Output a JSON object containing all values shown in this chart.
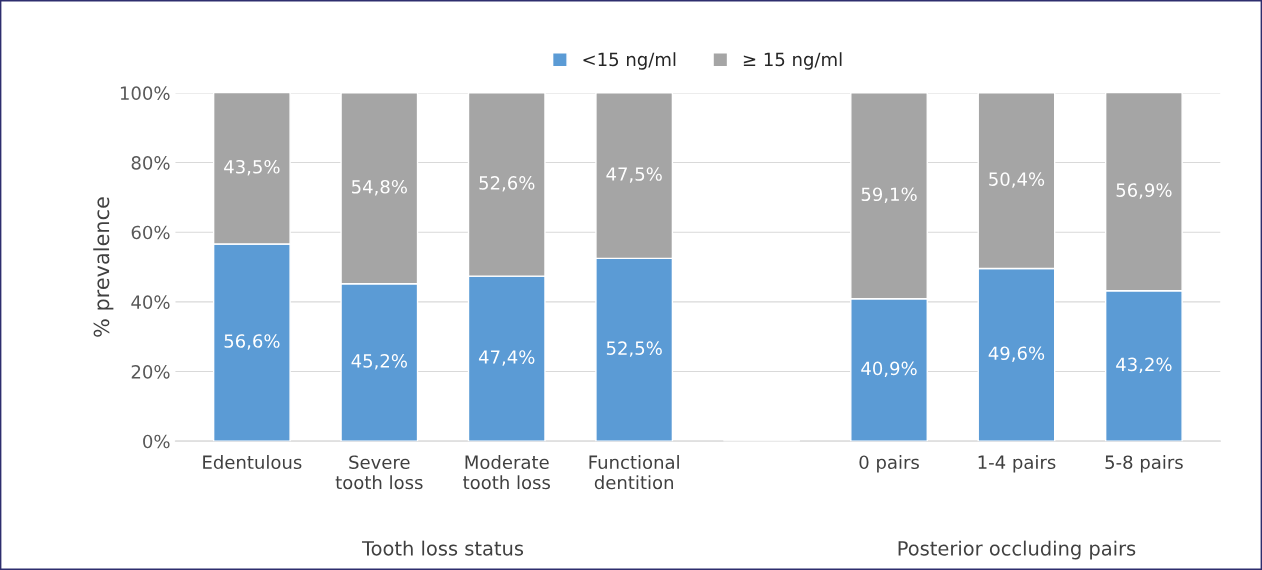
{
  "chart_data": {
    "type": "bar",
    "stacked": true,
    "ylabel": "% prevalence",
    "categories": [
      "Edentulous",
      "Severe\ntooth loss",
      "Moderate\ntooth loss",
      "Functional\ndentition",
      null,
      "0 pairs",
      "1-4 pairs",
      "5-8 pairs"
    ],
    "series": [
      {
        "name": "<15 ng/ml",
        "color": "#5b9bd5",
        "values": [
          56.6,
          45.2,
          47.4,
          52.5,
          null,
          40.9,
          49.6,
          43.2
        ],
        "value_labels": [
          "56,6%",
          "45,2%",
          "47,4%",
          "52,5%",
          null,
          "40,9%",
          "49,6%",
          "43,2%"
        ]
      },
      {
        "name": "≥ 15 ng/ml",
        "color": "#a5a5a5",
        "values": [
          43.5,
          54.8,
          52.6,
          47.5,
          null,
          59.1,
          50.4,
          56.9
        ],
        "value_labels": [
          "43,5%",
          "54,8%",
          "52,6%",
          "47,5%",
          null,
          "59,1%",
          "50,4%",
          "56,9%"
        ]
      }
    ],
    "ylim": [
      0,
      100
    ],
    "yticks": [
      {
        "value": 0,
        "label": "0%"
      },
      {
        "value": 20,
        "label": "20%"
      },
      {
        "value": 40,
        "label": "40%"
      },
      {
        "value": 60,
        "label": "60%"
      },
      {
        "value": 80,
        "label": "80%"
      },
      {
        "value": 100,
        "label": "100%"
      }
    ],
    "grid": "y",
    "legend": "top",
    "annotations": [
      "Tooth loss status",
      "Posterior occluding pairs"
    ]
  }
}
